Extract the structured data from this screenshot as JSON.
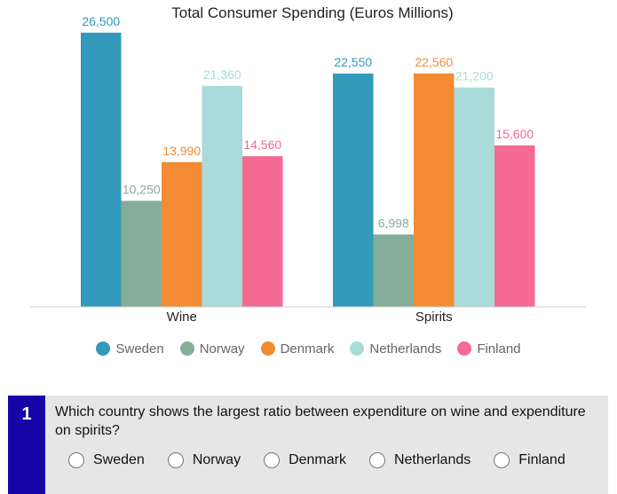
{
  "chart_data": {
    "type": "bar",
    "title": "Total Consumer Spending (Euros Millions)",
    "categories": [
      "Wine",
      "Spirits"
    ],
    "series": [
      {
        "name": "Sweden",
        "color": "#3399bb",
        "values": [
          26500,
          22550
        ],
        "labels": [
          "26,500",
          "22,550"
        ]
      },
      {
        "name": "Norway",
        "color": "#85ae98",
        "values": [
          10250,
          6998
        ],
        "labels": [
          "10,250",
          "6,998"
        ]
      },
      {
        "name": "Denmark",
        "color": "#f28b34",
        "values": [
          13990,
          22560
        ],
        "labels": [
          "13,990",
          "22,560"
        ]
      },
      {
        "name": "Netherlands",
        "color": "#a8dbd9",
        "values": [
          21360,
          21200
        ],
        "labels": [
          "21,360",
          "21,200"
        ]
      },
      {
        "name": "Finland",
        "color": "#f46a93",
        "values": [
          14560,
          15600
        ],
        "labels": [
          "14,560",
          "15,600"
        ]
      }
    ],
    "ylim": [
      0,
      27000
    ],
    "grid": false,
    "legend": "bottom"
  },
  "question": {
    "number": "1",
    "text": "Which country shows the largest ratio between expenditure on wine and expenditure on spirits?",
    "options": [
      "Sweden",
      "Norway",
      "Denmark",
      "Netherlands",
      "Finland"
    ]
  }
}
